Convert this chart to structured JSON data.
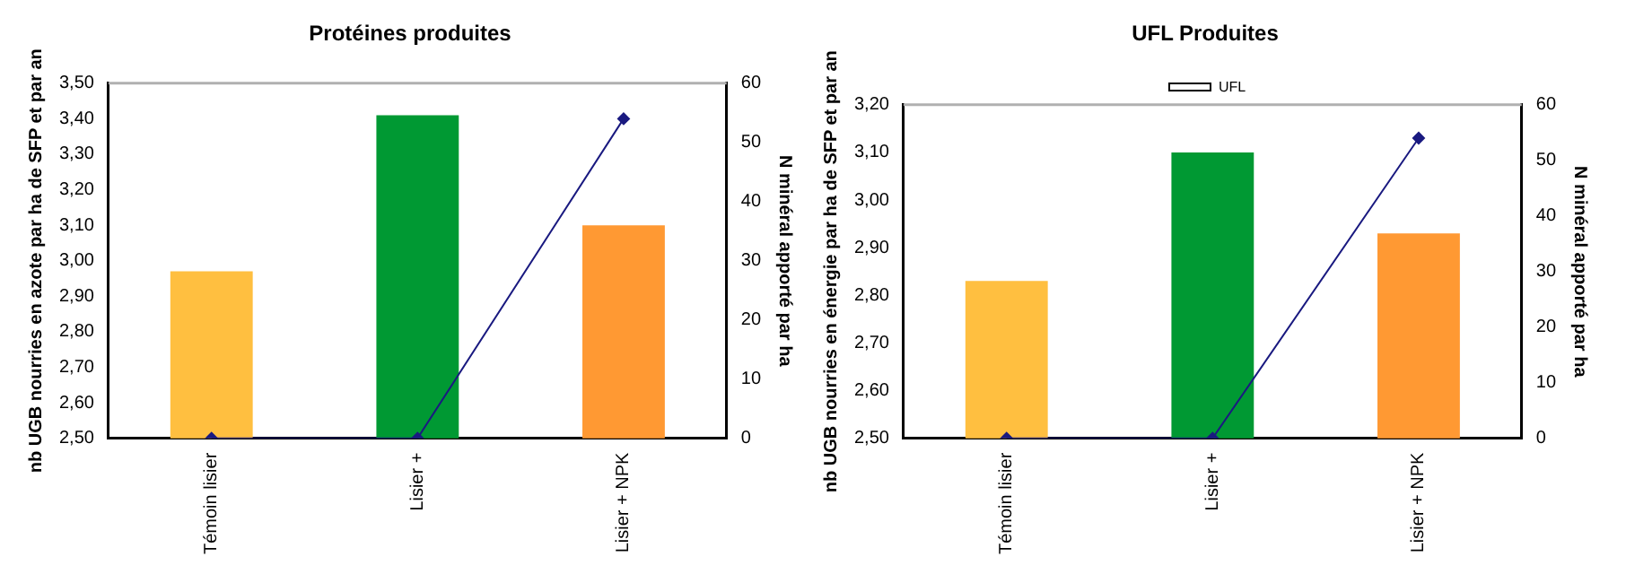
{
  "chart_data": [
    {
      "type": "bar",
      "title": "Protéines produites",
      "ylabel": "nb UGB nourries en azote par ha de SFP et par an",
      "y2label": "N minéral apporté par ha",
      "categories": [
        "Témoin lisier",
        "Lisier +",
        "Lisier + NPK"
      ],
      "series": [
        {
          "colors": [
            "#ffbf40",
            "#009933",
            "#ff9933"
          ],
          "values": [
            2.97,
            3.41,
            3.1
          ]
        },
        {
          "type": "line",
          "axis": "y2",
          "color": "#1a1a80",
          "marker": "diamond",
          "values": [
            0,
            0,
            54
          ]
        }
      ],
      "ylim": [
        2.5,
        3.5
      ],
      "yticks": [
        {
          "value": 2.5,
          "label": "2,50"
        },
        {
          "value": 2.6,
          "label": "2,60"
        },
        {
          "value": 2.7,
          "label": "2,70"
        },
        {
          "value": 2.8,
          "label": "2,80"
        },
        {
          "value": 2.9,
          "label": "2,90"
        },
        {
          "value": 3.0,
          "label": "3,00"
        },
        {
          "value": 3.1,
          "label": "3,10"
        },
        {
          "value": 3.2,
          "label": "3,20"
        },
        {
          "value": 3.3,
          "label": "3,30"
        },
        {
          "value": 3.4,
          "label": "3,40"
        },
        {
          "value": 3.5,
          "label": "3,50"
        }
      ],
      "y2lim": [
        0,
        60
      ],
      "y2ticks": [
        0,
        10,
        20,
        30,
        40,
        50,
        60
      ],
      "legend": false
    },
    {
      "type": "bar",
      "title": "UFL Produites",
      "ylabel": "nb UGB nourries en énergie par ha de SFP et par an",
      "y2label": "N minéral apporté par ha",
      "categories": [
        "Témoin lisier",
        "Lisier +",
        "Lisier + NPK"
      ],
      "series": [
        {
          "name": "UFL",
          "color": "#ffffff",
          "colors": [
            "#ffbf40",
            "#009933",
            "#ff9933"
          ],
          "values": [
            2.83,
            3.1,
            2.93
          ]
        },
        {
          "type": "line",
          "axis": "y2",
          "color": "#1a1a80",
          "marker": "diamond",
          "values": [
            0,
            0,
            54
          ]
        }
      ],
      "ylim": [
        2.5,
        3.2
      ],
      "yticks": [
        {
          "value": 2.5,
          "label": "2,50"
        },
        {
          "value": 2.6,
          "label": "2,60"
        },
        {
          "value": 2.7,
          "label": "2,70"
        },
        {
          "value": 2.8,
          "label": "2,80"
        },
        {
          "value": 2.9,
          "label": "2,90"
        },
        {
          "value": 3.0,
          "label": "3,00"
        },
        {
          "value": 3.1,
          "label": "3,10"
        },
        {
          "value": 3.2,
          "label": "3,20"
        }
      ],
      "y2lim": [
        0,
        60
      ],
      "y2ticks": [
        0,
        10,
        20,
        30,
        40,
        50,
        60
      ],
      "legend": "top"
    }
  ]
}
